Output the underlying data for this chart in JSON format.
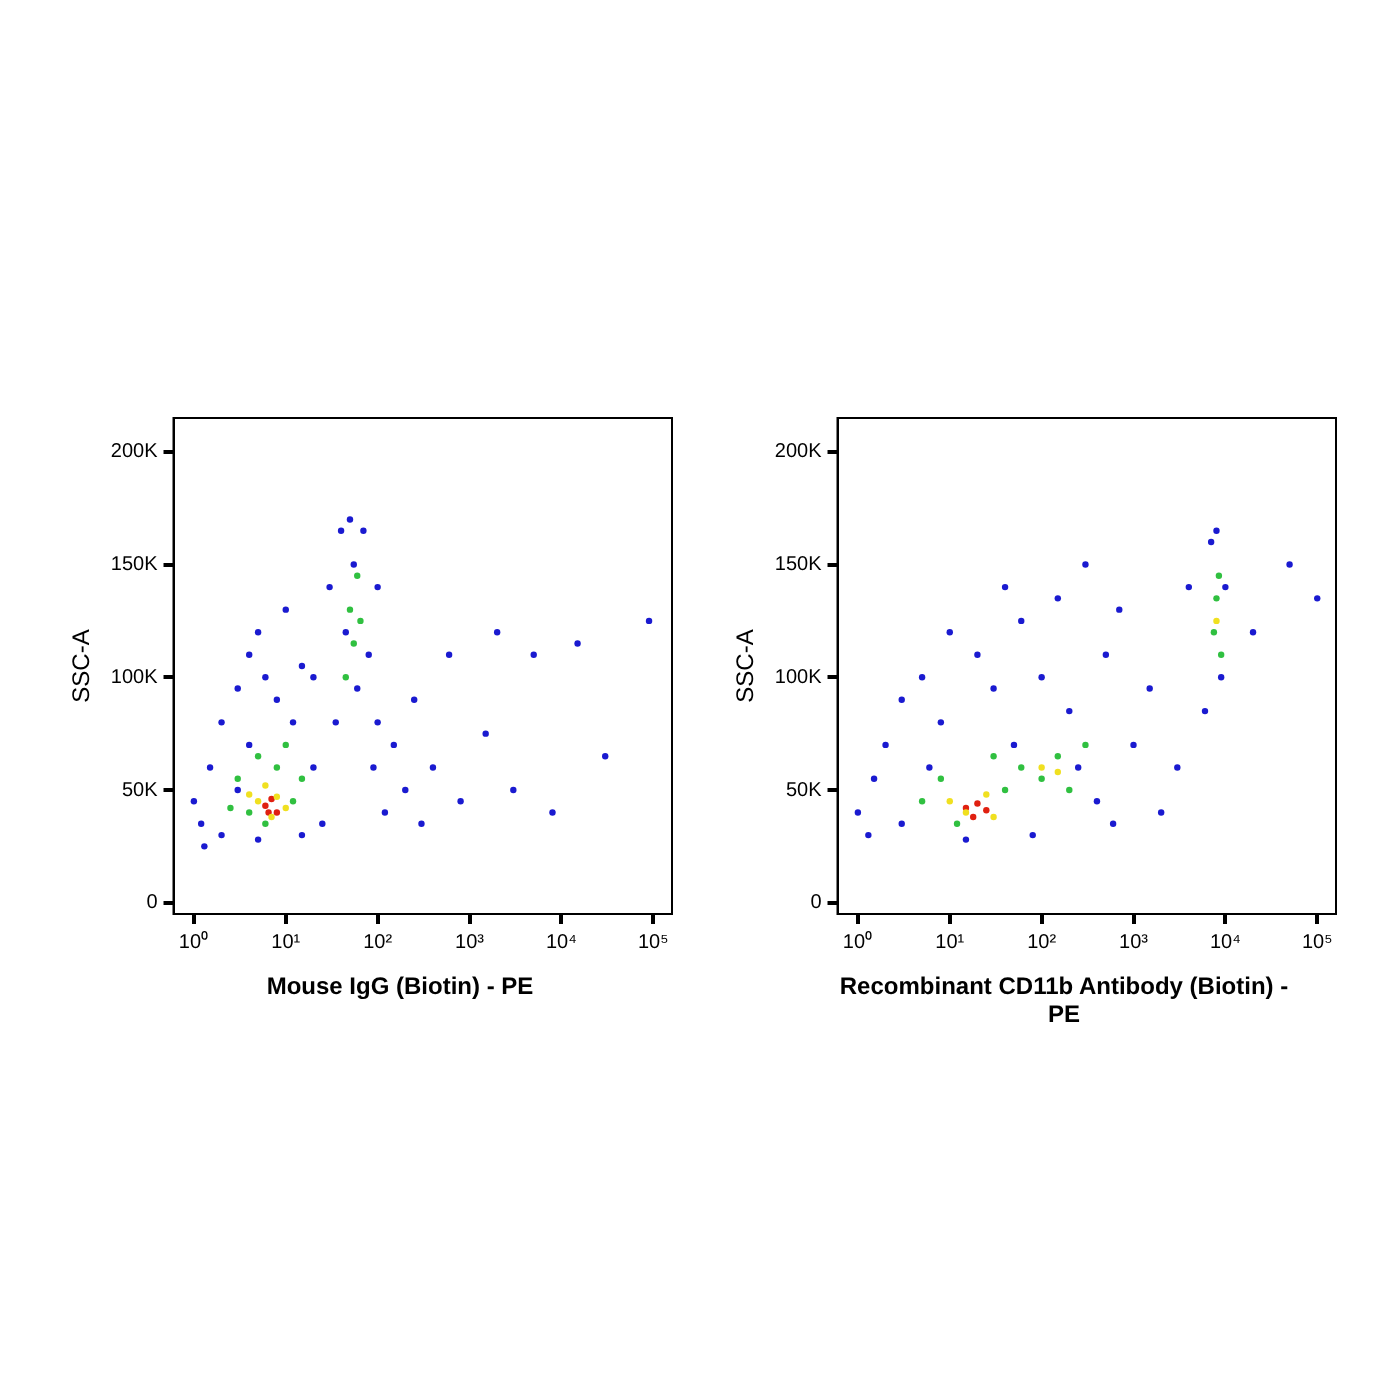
{
  "chart_data": [
    {
      "type": "scatter",
      "xlabel": "Mouse IgG (Biotin) - PE",
      "ylabel": "SSC-A",
      "log": "x",
      "marker": "circle",
      "xlim": [
        0.6,
        160000
      ],
      "xticks": [
        {
          "value": 1,
          "label": "10⁰"
        },
        {
          "value": 10,
          "label": "10¹"
        },
        {
          "value": 100,
          "label": "10²"
        },
        {
          "value": 1000,
          "label": "10³"
        },
        {
          "value": 10000,
          "label": "10⁴"
        },
        {
          "value": 100000,
          "label": "10⁵"
        }
      ],
      "ylim": [
        -5000,
        215000
      ],
      "yticks": [
        {
          "value": 0,
          "label": "0"
        },
        {
          "value": 50000,
          "label": "50K"
        },
        {
          "value": 100000,
          "label": "100K"
        },
        {
          "value": 150000,
          "label": "150K"
        },
        {
          "value": 200000,
          "label": "200K"
        }
      ],
      "series": [
        {
          "color": "#1a1ad0",
          "x": [
            1.2,
            1.5,
            2,
            2,
            3,
            3,
            4,
            5,
            5,
            6,
            8,
            10,
            12,
            15,
            20,
            20,
            25,
            30,
            35,
            40,
            45,
            50,
            55,
            60,
            70,
            80,
            90,
            100,
            120,
            150,
            200,
            250,
            300,
            400,
            600,
            800,
            1500,
            2000,
            3000,
            5000,
            8000,
            15000,
            30000,
            90000,
            1,
            1.3,
            4,
            15,
            100
          ],
          "values": [
            35000,
            60000,
            80000,
            30000,
            95000,
            50000,
            110000,
            28000,
            120000,
            100000,
            90000,
            130000,
            80000,
            105000,
            60000,
            100000,
            35000,
            140000,
            80000,
            165000,
            120000,
            170000,
            150000,
            95000,
            165000,
            110000,
            60000,
            80000,
            40000,
            70000,
            50000,
            90000,
            35000,
            60000,
            110000,
            45000,
            75000,
            120000,
            50000,
            110000,
            40000,
            115000,
            65000,
            125000,
            45000,
            25000,
            70000,
            30000,
            140000
          ]
        },
        {
          "color": "#30c040",
          "x": [
            3,
            4,
            5,
            6,
            8,
            10,
            12,
            15,
            50,
            55,
            60,
            45,
            65,
            2.5
          ],
          "values": [
            55000,
            40000,
            65000,
            35000,
            60000,
            70000,
            45000,
            55000,
            130000,
            115000,
            145000,
            100000,
            125000,
            42000
          ]
        },
        {
          "color": "#f0e020",
          "x": [
            5,
            6,
            7,
            8,
            10,
            4
          ],
          "values": [
            45000,
            52000,
            38000,
            47000,
            42000,
            48000
          ]
        },
        {
          "color": "#e02010",
          "x": [
            6,
            7,
            8,
            6.5
          ],
          "values": [
            43000,
            46000,
            40000,
            40000
          ]
        }
      ]
    },
    {
      "type": "scatter",
      "xlabel": "Recombinant CD11b Antibody (Biotin) - PE",
      "ylabel": "SSC-A",
      "log": "x",
      "marker": "circle",
      "xlim": [
        0.6,
        160000
      ],
      "xticks": [
        {
          "value": 1,
          "label": "10⁰"
        },
        {
          "value": 10,
          "label": "10¹"
        },
        {
          "value": 100,
          "label": "10²"
        },
        {
          "value": 1000,
          "label": "10³"
        },
        {
          "value": 10000,
          "label": "10⁴"
        },
        {
          "value": 100000,
          "label": "10⁵"
        }
      ],
      "ylim": [
        -5000,
        215000
      ],
      "yticks": [
        {
          "value": 0,
          "label": "0"
        },
        {
          "value": 50000,
          "label": "50K"
        },
        {
          "value": 100000,
          "label": "100K"
        },
        {
          "value": 150000,
          "label": "150K"
        },
        {
          "value": 200000,
          "label": "200K"
        }
      ],
      "series": [
        {
          "color": "#1a1ad0",
          "x": [
            1,
            1.3,
            1.5,
            2,
            3,
            3,
            5,
            8,
            10,
            15,
            20,
            30,
            40,
            50,
            60,
            80,
            100,
            150,
            200,
            300,
            400,
            500,
            700,
            1000,
            1500,
            2000,
            3000,
            4000,
            6000,
            7000,
            8000,
            9000,
            10000,
            20000,
            50000,
            100000,
            600,
            250,
            6
          ],
          "values": [
            40000,
            30000,
            55000,
            70000,
            35000,
            90000,
            100000,
            80000,
            120000,
            28000,
            110000,
            95000,
            140000,
            70000,
            125000,
            30000,
            100000,
            135000,
            85000,
            150000,
            45000,
            110000,
            130000,
            70000,
            95000,
            40000,
            60000,
            140000,
            85000,
            160000,
            165000,
            100000,
            140000,
            120000,
            150000,
            135000,
            35000,
            60000,
            60000
          ]
        },
        {
          "color": "#30c040",
          "x": [
            5,
            8,
            12,
            40,
            60,
            100,
            150,
            200,
            300,
            30,
            7500,
            8000,
            9000,
            8500
          ],
          "values": [
            45000,
            55000,
            35000,
            50000,
            60000,
            55000,
            65000,
            50000,
            70000,
            65000,
            120000,
            135000,
            110000,
            145000
          ]
        },
        {
          "color": "#f0e020",
          "x": [
            10,
            15,
            25,
            30,
            100,
            150,
            8000
          ],
          "values": [
            45000,
            40000,
            48000,
            38000,
            60000,
            58000,
            125000
          ]
        },
        {
          "color": "#e02010",
          "x": [
            15,
            20,
            18,
            25
          ],
          "values": [
            42000,
            44000,
            38000,
            41000
          ]
        }
      ]
    }
  ]
}
